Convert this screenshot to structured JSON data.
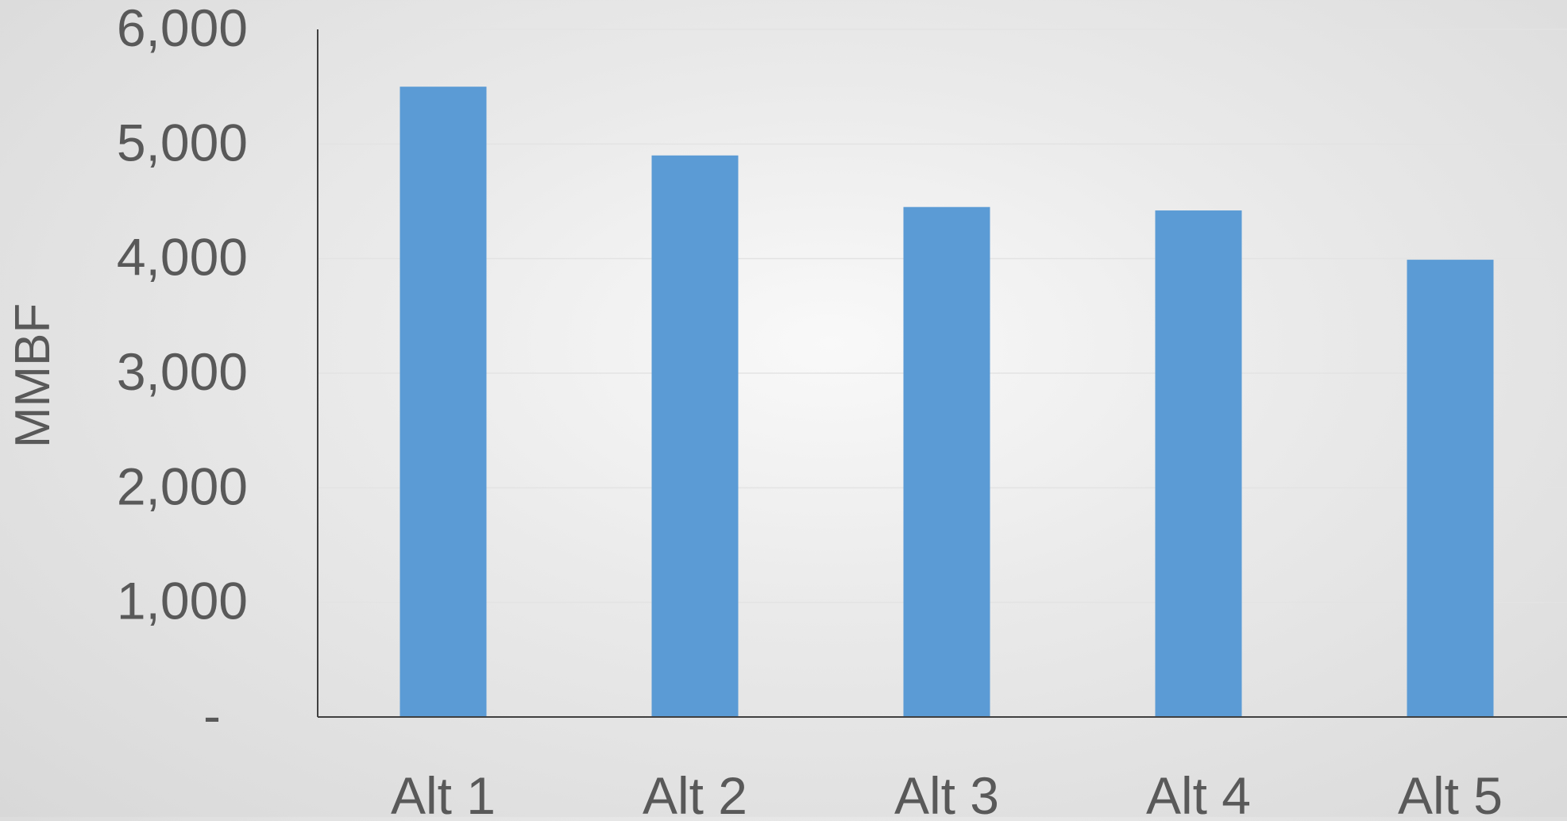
{
  "chart_data": {
    "type": "bar",
    "title": "",
    "xlabel": "",
    "ylabel": "MMBF",
    "categories": [
      "Alt 1",
      "Alt 2",
      "Alt 3",
      "Alt 4",
      "Alt 5"
    ],
    "values": [
      5500,
      4900,
      4450,
      4420,
      3990
    ],
    "ylim": [
      0,
      6000
    ],
    "yticks": [
      0,
      1000,
      2000,
      3000,
      4000,
      5000,
      6000
    ],
    "ytick_labels": [
      "-",
      "1,000",
      "2,000",
      "3,000",
      "4,000",
      "5,000",
      "6,000"
    ],
    "grid": true,
    "legend": "none",
    "bar_color": "#5b9bd5",
    "grid_color": "#e3e3e3",
    "axis_color": "#404040",
    "text_color": "#595959"
  }
}
